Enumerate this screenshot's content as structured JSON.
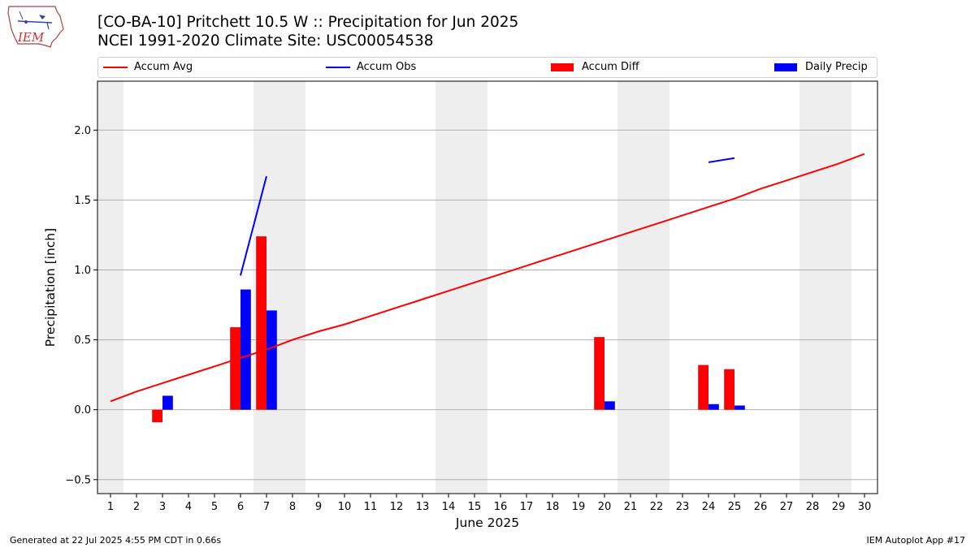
{
  "header": {
    "title_line1": "[CO-BA-10] Pritchett 10.5 W :: Precipitation for Jun 2025",
    "title_line2": "NCEI 1991-2020 Climate Site: USC00054538",
    "logo_text": "IEM"
  },
  "footer": {
    "left": "Generated at 22 Jul 2025 4:55 PM CDT in 0.66s",
    "right": "IEM Autoplot App #17"
  },
  "colors": {
    "accum_avg": "#ff0000",
    "accum_obs": "#0000ff",
    "accum_diff": "#ff0000",
    "daily_precip": "#0000ff",
    "weekend_shade": "#eeeeee",
    "grid": "#b0b0b0"
  },
  "chart_data": {
    "type": "bar",
    "xlabel": "June 2025",
    "ylabel": "Precipitation [inch]",
    "xlim": [
      0.5,
      30.5
    ],
    "ylim": [
      -0.6,
      2.35
    ],
    "yticks": [
      -0.5,
      0.0,
      0.5,
      1.0,
      1.5,
      2.0
    ],
    "ytick_labels": [
      "−0.5",
      "0.0",
      "0.5",
      "1.0",
      "1.5",
      "2.0"
    ],
    "days": [
      1,
      2,
      3,
      4,
      5,
      6,
      7,
      8,
      9,
      10,
      11,
      12,
      13,
      14,
      15,
      16,
      17,
      18,
      19,
      20,
      21,
      22,
      23,
      24,
      25,
      26,
      27,
      28,
      29,
      30
    ],
    "grid": "horizontal",
    "legend_position": "top",
    "legend": [
      "Accum Avg",
      "Accum Obs",
      "Accum Diff",
      "Daily Precip"
    ],
    "weekend_days": [
      1,
      7,
      8,
      14,
      15,
      21,
      22,
      28,
      29
    ],
    "series": [
      {
        "name": "Accum Avg",
        "kind": "line",
        "x": [
          1,
          2,
          3,
          4,
          5,
          6,
          7,
          8,
          9,
          10,
          11,
          12,
          13,
          14,
          15,
          16,
          17,
          18,
          19,
          20,
          21,
          22,
          23,
          24,
          25,
          26,
          27,
          28,
          29,
          30
        ],
        "values": [
          0.06,
          0.13,
          0.19,
          0.25,
          0.31,
          0.37,
          0.43,
          0.5,
          0.56,
          0.61,
          0.67,
          0.73,
          0.79,
          0.85,
          0.91,
          0.97,
          1.03,
          1.09,
          1.15,
          1.21,
          1.27,
          1.33,
          1.39,
          1.45,
          1.51,
          1.58,
          1.64,
          1.7,
          1.76,
          1.83
        ]
      },
      {
        "name": "Accum Obs",
        "kind": "line",
        "segments": [
          {
            "x": [
              6,
              7
            ],
            "values": [
              0.96,
              1.67
            ]
          },
          {
            "x": [
              24,
              25
            ],
            "values": [
              1.77,
              1.8
            ]
          }
        ]
      },
      {
        "name": "Accum Diff",
        "kind": "bar",
        "x": [
          3,
          6,
          7,
          20,
          24,
          25
        ],
        "values": [
          -0.09,
          0.59,
          1.24,
          0.52,
          0.32,
          0.29
        ]
      },
      {
        "name": "Daily Precip",
        "kind": "bar",
        "x": [
          3,
          6,
          7,
          20,
          24,
          25
        ],
        "values": [
          0.1,
          0.86,
          0.71,
          0.06,
          0.04,
          0.03
        ]
      }
    ]
  }
}
